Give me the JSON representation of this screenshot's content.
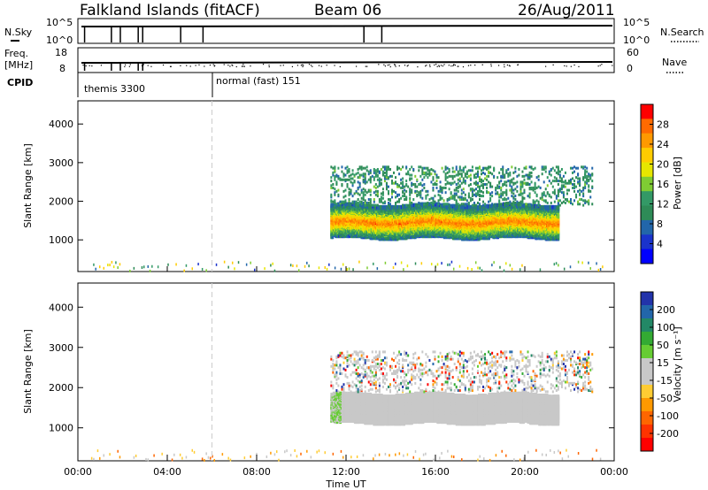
{
  "header": {
    "title": "Falkland Islands (fitACF)",
    "beam": "Beam 06",
    "date": "26/Aug/2011"
  },
  "strip_labels": {
    "nsky": "N.Sky",
    "nsky_ticks": [
      "10^5",
      "10^0"
    ],
    "nsearch": "N.Search",
    "nsearch_ticks": [
      "10^5",
      "10^0"
    ],
    "freq_line1": "Freq.",
    "freq_line2": "[MHz]",
    "freq_ticks": [
      "18",
      "8"
    ],
    "nave": "Nave",
    "nave_ticks": [
      "60",
      "0"
    ],
    "cpid": "CPID",
    "cpid_segments": [
      "themis 3300",
      "normal (fast) 151"
    ]
  },
  "colorbars": {
    "power": {
      "label": "Power [dB]",
      "ticks": [
        "28",
        "24",
        "20",
        "16",
        "12",
        "8",
        "4"
      ],
      "colors": [
        "#ff0000",
        "#ff6a00",
        "#ff9900",
        "#ffcc00",
        "#e6e600",
        "#7fcc33",
        "#339966",
        "#2e8b57",
        "#2266aa",
        "#1a33cc",
        "#0000ff"
      ]
    },
    "velocity": {
      "label": "Velocity [m s⁻¹]",
      "ticks": [
        "200",
        "100",
        "50",
        "15",
        "-15",
        "-50",
        "-100",
        "-200"
      ],
      "colors": [
        "#2233aa",
        "#2266aa",
        "#228866",
        "#33aa33",
        "#66cc33",
        "#c8c8c8",
        "#c8c8c8",
        "#ffcc33",
        "#ff9900",
        "#ff6600",
        "#ff3300",
        "#ff0000"
      ]
    }
  },
  "chart_data": [
    {
      "type": "heatmap",
      "panel": "power",
      "ylabel": "Slant Range [km]",
      "yticks": [
        1000,
        2000,
        3000,
        4000
      ],
      "ylim": [
        180,
        4600
      ],
      "xlim_hours": [
        0,
        24
      ],
      "regions": [
        {
          "kind": "main-band",
          "t0": 11.3,
          "t1": 21.5,
          "r_center": 1500,
          "r_half": 150,
          "level": 24
        },
        {
          "kind": "band-edge",
          "t0": 11.3,
          "t1": 21.5,
          "r_center": 1500,
          "r_half": 380,
          "level": 12
        },
        {
          "kind": "streaks",
          "t0": 11.3,
          "t1": 23.0,
          "r_low": 1900,
          "r_high": 2900,
          "level": 8
        },
        {
          "kind": "sparse-ground",
          "t0": 0.5,
          "t1": 23.5,
          "r_low": 200,
          "r_high": 450,
          "level": 8
        }
      ]
    },
    {
      "type": "heatmap",
      "panel": "velocity",
      "ylabel": "Slant Range [km]",
      "yticks": [
        1000,
        2000,
        3000,
        4000
      ],
      "ylim": [
        180,
        4600
      ],
      "xlim_hours": [
        0,
        24
      ],
      "xticks": [
        "00:00",
        "04:00",
        "08:00",
        "12:00",
        "16:00",
        "20:00",
        "00:00"
      ],
      "xlabel": "Time UT",
      "regions": [
        {
          "kind": "main-band",
          "t0": 11.3,
          "t1": 21.5,
          "r_center": 1500,
          "r_half": 380,
          "velocity": 0
        },
        {
          "kind": "streaks",
          "t0": 11.3,
          "t1": 23.0,
          "r_low": 1900,
          "r_high": 2900,
          "velocity": 0
        },
        {
          "kind": "sparse-ground",
          "t0": 0.5,
          "t1": 23.5,
          "r_low": 200,
          "r_high": 450,
          "velocity": -20
        }
      ]
    }
  ]
}
